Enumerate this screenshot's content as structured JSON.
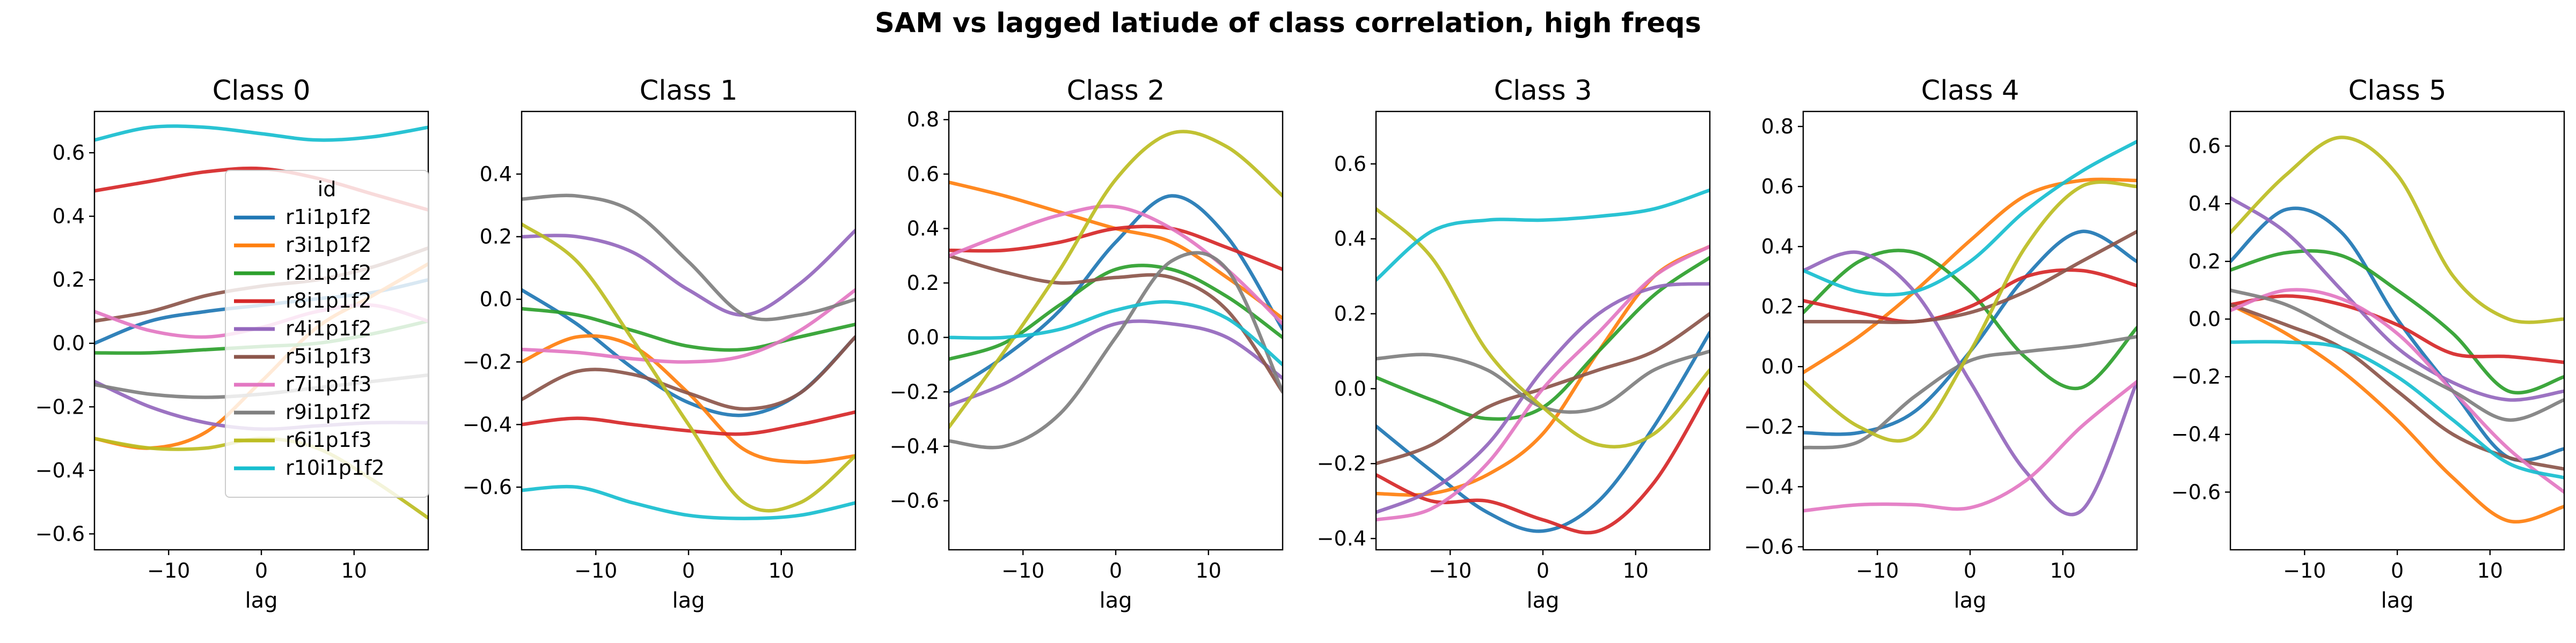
{
  "figure": {
    "title": "SAM vs lagged latiude of class correlation, high freqs"
  },
  "legend": {
    "title": "id",
    "placement": "panel-1 center-right",
    "entries": [
      {
        "label": "r1i1p1f2",
        "color": "#1f77b4"
      },
      {
        "label": "r3i1p1f2",
        "color": "#ff7f0e"
      },
      {
        "label": "r2i1p1f2",
        "color": "#2ca02c"
      },
      {
        "label": "r8i1p1f2",
        "color": "#d62728"
      },
      {
        "label": "r4i1p1f2",
        "color": "#9467bd"
      },
      {
        "label": "r5i1p1f3",
        "color": "#8c564b"
      },
      {
        "label": "r7i1p1f3",
        "color": "#e377c2"
      },
      {
        "label": "r9i1p1f2",
        "color": "#7f7f7f"
      },
      {
        "label": "r6i1p1f3",
        "color": "#bcbd22"
      },
      {
        "label": "r10i1p1f2",
        "color": "#17becf"
      }
    ]
  },
  "chart_data": [
    {
      "type": "line",
      "title": "Class 0",
      "xlabel": "lag",
      "ylabel": "",
      "xlim": [
        -18,
        18
      ],
      "ylim": [
        -0.65,
        0.73
      ],
      "xticks": [
        -10,
        0,
        10
      ],
      "yticks": [
        -0.6,
        -0.4,
        -0.2,
        0.0,
        0.2,
        0.4,
        0.6
      ],
      "grid": false,
      "x": [
        -18,
        -12,
        -6,
        0,
        6,
        12,
        18
      ],
      "series": [
        {
          "name": "r1i1p1f2",
          "values": [
            0.0,
            0.07,
            0.1,
            0.12,
            0.14,
            0.16,
            0.2
          ]
        },
        {
          "name": "r3i1p1f2",
          "values": [
            -0.3,
            -0.33,
            -0.28,
            -0.12,
            0.05,
            0.15,
            0.25
          ]
        },
        {
          "name": "r2i1p1f2",
          "values": [
            -0.03,
            -0.03,
            -0.02,
            -0.01,
            0.0,
            0.03,
            0.07
          ]
        },
        {
          "name": "r8i1p1f2",
          "values": [
            0.48,
            0.51,
            0.54,
            0.55,
            0.52,
            0.47,
            0.42
          ]
        },
        {
          "name": "r4i1p1f2",
          "values": [
            -0.12,
            -0.2,
            -0.25,
            -0.27,
            -0.26,
            -0.25,
            -0.25
          ]
        },
        {
          "name": "r5i1p1f3",
          "values": [
            0.07,
            0.1,
            0.15,
            0.18,
            0.2,
            0.24,
            0.3
          ]
        },
        {
          "name": "r7i1p1f3",
          "values": [
            0.1,
            0.04,
            0.02,
            0.05,
            0.1,
            0.12,
            0.07
          ]
        },
        {
          "name": "r9i1p1f2",
          "values": [
            -0.13,
            -0.16,
            -0.17,
            -0.16,
            -0.14,
            -0.12,
            -0.1
          ]
        },
        {
          "name": "r6i1p1f3",
          "values": [
            -0.3,
            -0.33,
            -0.33,
            -0.3,
            -0.33,
            -0.43,
            -0.55
          ]
        },
        {
          "name": "r10i1p1f2",
          "values": [
            0.64,
            0.68,
            0.68,
            0.66,
            0.64,
            0.65,
            0.68
          ]
        }
      ]
    },
    {
      "type": "line",
      "title": "Class 1",
      "xlabel": "lag",
      "ylabel": "",
      "xlim": [
        -18,
        18
      ],
      "ylim": [
        -0.8,
        0.6
      ],
      "xticks": [
        -10,
        0,
        10
      ],
      "yticks": [
        -0.6,
        -0.4,
        -0.2,
        0.0,
        0.2,
        0.4
      ],
      "grid": false,
      "x": [
        -18,
        -12,
        -6,
        0,
        6,
        12,
        18
      ],
      "series": [
        {
          "name": "r1i1p1f2",
          "values": [
            0.03,
            -0.08,
            -0.22,
            -0.33,
            -0.37,
            -0.3,
            -0.12
          ]
        },
        {
          "name": "r3i1p1f2",
          "values": [
            -0.2,
            -0.12,
            -0.15,
            -0.3,
            -0.48,
            -0.52,
            -0.5
          ]
        },
        {
          "name": "r2i1p1f2",
          "values": [
            -0.03,
            -0.05,
            -0.1,
            -0.15,
            -0.16,
            -0.12,
            -0.08
          ]
        },
        {
          "name": "r8i1p1f2",
          "values": [
            -0.4,
            -0.38,
            -0.4,
            -0.42,
            -0.43,
            -0.4,
            -0.36
          ]
        },
        {
          "name": "r4i1p1f2",
          "values": [
            0.2,
            0.2,
            0.15,
            0.03,
            -0.05,
            0.05,
            0.22
          ]
        },
        {
          "name": "r5i1p1f3",
          "values": [
            -0.32,
            -0.23,
            -0.24,
            -0.3,
            -0.35,
            -0.3,
            -0.12
          ]
        },
        {
          "name": "r7i1p1f3",
          "values": [
            -0.16,
            -0.17,
            -0.19,
            -0.2,
            -0.18,
            -0.1,
            0.03
          ]
        },
        {
          "name": "r9i1p1f2",
          "values": [
            0.32,
            0.33,
            0.28,
            0.12,
            -0.05,
            -0.05,
            0.0
          ]
        },
        {
          "name": "r6i1p1f3",
          "values": [
            0.24,
            0.12,
            -0.13,
            -0.4,
            -0.65,
            -0.65,
            -0.5
          ]
        },
        {
          "name": "r10i1p1f2",
          "values": [
            -0.61,
            -0.6,
            -0.65,
            -0.69,
            -0.7,
            -0.69,
            -0.65
          ]
        }
      ]
    },
    {
      "type": "line",
      "title": "Class 2",
      "xlabel": "lag",
      "ylabel": "",
      "xlim": [
        -18,
        18
      ],
      "ylim": [
        -0.78,
        0.83
      ],
      "xticks": [
        -10,
        0,
        10
      ],
      "yticks": [
        -0.6,
        -0.4,
        -0.2,
        0.0,
        0.2,
        0.4,
        0.6,
        0.8
      ],
      "grid": false,
      "x": [
        -18,
        -12,
        -6,
        0,
        6,
        12,
        18
      ],
      "series": [
        {
          "name": "r1i1p1f2",
          "values": [
            -0.2,
            -0.07,
            0.1,
            0.35,
            0.52,
            0.37,
            0.03
          ]
        },
        {
          "name": "r3i1p1f2",
          "values": [
            0.57,
            0.52,
            0.46,
            0.4,
            0.35,
            0.22,
            0.07
          ]
        },
        {
          "name": "r2i1p1f2",
          "values": [
            -0.08,
            -0.02,
            0.12,
            0.25,
            0.25,
            0.15,
            0.0
          ]
        },
        {
          "name": "r8i1p1f2",
          "values": [
            0.32,
            0.32,
            0.35,
            0.4,
            0.4,
            0.33,
            0.25
          ]
        },
        {
          "name": "r4i1p1f2",
          "values": [
            -0.25,
            -0.17,
            -0.05,
            0.05,
            0.05,
            0.0,
            -0.15
          ]
        },
        {
          "name": "r5i1p1f3",
          "values": [
            0.3,
            0.24,
            0.2,
            0.22,
            0.22,
            0.1,
            -0.2
          ]
        },
        {
          "name": "r7i1p1f3",
          "values": [
            0.3,
            0.38,
            0.45,
            0.48,
            0.4,
            0.25,
            0.05
          ]
        },
        {
          "name": "r9i1p1f2",
          "values": [
            -0.38,
            -0.4,
            -0.28,
            0.0,
            0.28,
            0.25,
            -0.2
          ]
        },
        {
          "name": "r6i1p1f3",
          "values": [
            -0.33,
            -0.05,
            0.25,
            0.58,
            0.75,
            0.7,
            0.52
          ]
        },
        {
          "name": "r10i1p1f2",
          "values": [
            0.0,
            0.0,
            0.03,
            0.1,
            0.13,
            0.07,
            -0.1
          ]
        }
      ]
    },
    {
      "type": "line",
      "title": "Class 3",
      "xlabel": "lag",
      "ylabel": "",
      "xlim": [
        -18,
        18
      ],
      "ylim": [
        -0.43,
        0.74
      ],
      "xticks": [
        -10,
        0,
        10
      ],
      "yticks": [
        -0.4,
        -0.2,
        0.0,
        0.2,
        0.4,
        0.6
      ],
      "grid": false,
      "x": [
        -18,
        -12,
        -6,
        0,
        6,
        12,
        18
      ],
      "series": [
        {
          "name": "r1i1p1f2",
          "values": [
            -0.1,
            -0.22,
            -0.33,
            -0.38,
            -0.3,
            -0.1,
            0.15
          ]
        },
        {
          "name": "r3i1p1f2",
          "values": [
            -0.28,
            -0.28,
            -0.23,
            -0.12,
            0.1,
            0.3,
            0.38
          ]
        },
        {
          "name": "r2i1p1f2",
          "values": [
            0.03,
            -0.03,
            -0.08,
            -0.05,
            0.1,
            0.25,
            0.35
          ]
        },
        {
          "name": "r8i1p1f2",
          "values": [
            -0.23,
            -0.3,
            -0.3,
            -0.35,
            -0.38,
            -0.25,
            0.0
          ]
        },
        {
          "name": "r4i1p1f2",
          "values": [
            -0.33,
            -0.27,
            -0.15,
            0.05,
            0.2,
            0.27,
            0.28
          ]
        },
        {
          "name": "r5i1p1f3",
          "values": [
            -0.2,
            -0.15,
            -0.05,
            0.0,
            0.05,
            0.1,
            0.2
          ]
        },
        {
          "name": "r7i1p1f3",
          "values": [
            -0.35,
            -0.32,
            -0.2,
            0.0,
            0.15,
            0.3,
            0.38
          ]
        },
        {
          "name": "r9i1p1f2",
          "values": [
            0.08,
            0.09,
            0.05,
            -0.05,
            -0.05,
            0.05,
            0.1
          ]
        },
        {
          "name": "r6i1p1f3",
          "values": [
            0.48,
            0.35,
            0.1,
            -0.05,
            -0.15,
            -0.12,
            0.05
          ]
        },
        {
          "name": "r10i1p1f2",
          "values": [
            0.29,
            0.42,
            0.45,
            0.45,
            0.46,
            0.48,
            0.53
          ]
        }
      ]
    },
    {
      "type": "line",
      "title": "Class 4",
      "xlabel": "lag",
      "ylabel": "",
      "xlim": [
        -18,
        18
      ],
      "ylim": [
        -0.61,
        0.85
      ],
      "xticks": [
        -10,
        0,
        10
      ],
      "yticks": [
        -0.6,
        -0.4,
        -0.2,
        0.0,
        0.2,
        0.4,
        0.6,
        0.8
      ],
      "grid": false,
      "x": [
        -18,
        -12,
        -6,
        0,
        6,
        12,
        18
      ],
      "series": [
        {
          "name": "r1i1p1f2",
          "values": [
            -0.22,
            -0.22,
            -0.15,
            0.05,
            0.3,
            0.45,
            0.35
          ]
        },
        {
          "name": "r3i1p1f2",
          "values": [
            -0.02,
            0.1,
            0.25,
            0.42,
            0.57,
            0.62,
            0.62
          ]
        },
        {
          "name": "r2i1p1f2",
          "values": [
            0.18,
            0.35,
            0.38,
            0.25,
            0.03,
            -0.07,
            0.13
          ]
        },
        {
          "name": "r8i1p1f2",
          "values": [
            0.22,
            0.18,
            0.15,
            0.2,
            0.3,
            0.32,
            0.27
          ]
        },
        {
          "name": "r4i1p1f2",
          "values": [
            0.32,
            0.38,
            0.25,
            -0.05,
            -0.35,
            -0.48,
            -0.05
          ]
        },
        {
          "name": "r5i1p1f3",
          "values": [
            0.15,
            0.15,
            0.15,
            0.18,
            0.25,
            0.35,
            0.45
          ]
        },
        {
          "name": "r7i1p1f3",
          "values": [
            -0.48,
            -0.46,
            -0.46,
            -0.47,
            -0.38,
            -0.2,
            -0.05
          ]
        },
        {
          "name": "r9i1p1f2",
          "values": [
            -0.27,
            -0.25,
            -0.1,
            0.02,
            0.05,
            0.07,
            0.1
          ]
        },
        {
          "name": "r6i1p1f3",
          "values": [
            -0.05,
            -0.2,
            -0.23,
            0.05,
            0.4,
            0.6,
            0.6
          ]
        },
        {
          "name": "r10i1p1f2",
          "values": [
            0.32,
            0.25,
            0.25,
            0.35,
            0.52,
            0.65,
            0.75
          ]
        }
      ]
    },
    {
      "type": "line",
      "title": "Class 5",
      "xlabel": "lag",
      "ylabel": "",
      "xlim": [
        -18,
        18
      ],
      "ylim": [
        -0.8,
        0.72
      ],
      "xticks": [
        -10,
        0,
        10
      ],
      "yticks": [
        -0.6,
        -0.4,
        -0.2,
        0.0,
        0.2,
        0.4,
        0.6
      ],
      "grid": false,
      "x": [
        -18,
        -12,
        -6,
        0,
        6,
        12,
        18
      ],
      "series": [
        {
          "name": "r1i1p1f2",
          "values": [
            0.2,
            0.38,
            0.3,
            0.0,
            -0.25,
            -0.48,
            -0.45
          ]
        },
        {
          "name": "r3i1p1f2",
          "values": [
            0.05,
            -0.05,
            -0.18,
            -0.35,
            -0.55,
            -0.7,
            -0.65
          ]
        },
        {
          "name": "r2i1p1f2",
          "values": [
            0.17,
            0.23,
            0.22,
            0.1,
            -0.05,
            -0.25,
            -0.2
          ]
        },
        {
          "name": "r8i1p1f2",
          "values": [
            0.05,
            0.08,
            0.05,
            -0.02,
            -0.12,
            -0.13,
            -0.15
          ]
        },
        {
          "name": "r4i1p1f2",
          "values": [
            0.42,
            0.3,
            0.1,
            -0.1,
            -0.22,
            -0.28,
            -0.25
          ]
        },
        {
          "name": "r5i1p1f3",
          "values": [
            0.05,
            -0.02,
            -0.1,
            -0.25,
            -0.4,
            -0.48,
            -0.52
          ]
        },
        {
          "name": "r7i1p1f3",
          "values": [
            0.03,
            0.1,
            0.07,
            -0.05,
            -0.25,
            -0.45,
            -0.6
          ]
        },
        {
          "name": "r9i1p1f2",
          "values": [
            0.1,
            0.05,
            -0.05,
            -0.15,
            -0.25,
            -0.35,
            -0.28
          ]
        },
        {
          "name": "r6i1p1f3",
          "values": [
            0.3,
            0.5,
            0.63,
            0.5,
            0.15,
            0.0,
            0.0
          ]
        },
        {
          "name": "r10i1p1f2",
          "values": [
            -0.08,
            -0.08,
            -0.1,
            -0.2,
            -0.35,
            -0.5,
            -0.55
          ]
        }
      ]
    }
  ]
}
